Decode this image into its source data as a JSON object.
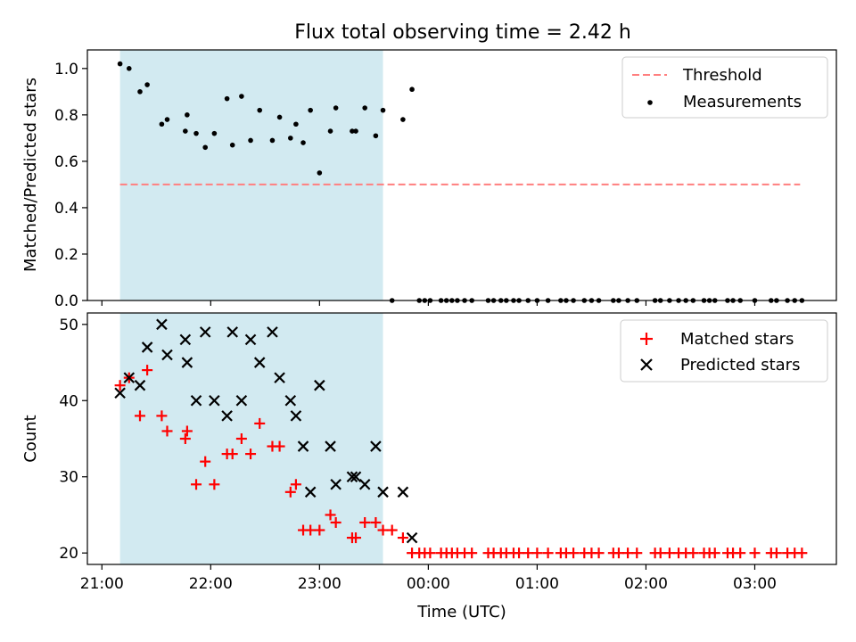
{
  "title": "Flux total observing time = 2.42 h",
  "colors": {
    "shade": "#add8e6",
    "threshold": "#ff7f7f",
    "matched": "#ff0000",
    "predicted": "#000000",
    "measurement": "#000000"
  },
  "shaded_interval": {
    "start": "21:10",
    "end": "23:35"
  },
  "x_axis": {
    "label": "Time (UTC)",
    "range": [
      "20:52",
      "03:45"
    ],
    "ticks": [
      {
        "t": "21:00",
        "label": "21:00"
      },
      {
        "t": "22:00",
        "label": "22:00"
      },
      {
        "t": "23:00",
        "label": "23:00"
      },
      {
        "t": "00:00",
        "label": "00:00"
      },
      {
        "t": "01:00",
        "label": "01:00"
      },
      {
        "t": "02:00",
        "label": "02:00"
      },
      {
        "t": "03:00",
        "label": "03:00"
      }
    ]
  },
  "chart_data": [
    {
      "type": "scatter",
      "ylabel": "Matched/Predicted stars",
      "ylim": [
        0,
        1.08
      ],
      "yticks": [
        0.0,
        0.2,
        0.4,
        0.6,
        0.8,
        1.0
      ],
      "ytick_labels": [
        "0.0",
        "0.2",
        "0.4",
        "0.6",
        "0.8",
        "1.0"
      ],
      "legend": {
        "position": "upper right",
        "entries": [
          "Threshold",
          "Measurements"
        ]
      },
      "threshold": {
        "name": "Threshold",
        "value": 0.5,
        "x_start": "21:10",
        "x_end": "03:25"
      },
      "series": [
        {
          "name": "Measurements",
          "points": [
            [
              "21:10",
              1.02
            ],
            [
              "21:15",
              1.0
            ],
            [
              "21:21",
              0.9
            ],
            [
              "21:25",
              0.93
            ],
            [
              "21:33",
              0.76
            ],
            [
              "21:36",
              0.78
            ],
            [
              "21:46",
              0.73
            ],
            [
              "21:47",
              0.8
            ],
            [
              "21:52",
              0.72
            ],
            [
              "21:57",
              0.66
            ],
            [
              "22:02",
              0.72
            ],
            [
              "22:09",
              0.87
            ],
            [
              "22:12",
              0.67
            ],
            [
              "22:17",
              0.88
            ],
            [
              "22:22",
              0.69
            ],
            [
              "22:27",
              0.82
            ],
            [
              "22:34",
              0.69
            ],
            [
              "22:38",
              0.79
            ],
            [
              "22:44",
              0.7
            ],
            [
              "22:47",
              0.76
            ],
            [
              "22:51",
              0.68
            ],
            [
              "22:55",
              0.82
            ],
            [
              "23:00",
              0.55
            ],
            [
              "23:06",
              0.73
            ],
            [
              "23:09",
              0.83
            ],
            [
              "23:18",
              0.73
            ],
            [
              "23:20",
              0.73
            ],
            [
              "23:25",
              0.83
            ],
            [
              "23:31",
              0.71
            ],
            [
              "23:35",
              0.82
            ],
            [
              "23:46",
              0.78
            ],
            [
              "23:51",
              0.91
            ],
            [
              "23:40",
              0.0
            ],
            [
              "23:55",
              0.0
            ],
            [
              "23:58",
              0.0
            ],
            [
              "00:01",
              0.0
            ],
            [
              "00:07",
              0.0
            ],
            [
              "00:10",
              0.0
            ],
            [
              "00:13",
              0.0
            ],
            [
              "00:16",
              0.0
            ],
            [
              "00:20",
              0.0
            ],
            [
              "00:24",
              0.0
            ],
            [
              "00:33",
              0.0
            ],
            [
              "00:36",
              0.0
            ],
            [
              "00:40",
              0.0
            ],
            [
              "00:43",
              0.0
            ],
            [
              "00:47",
              0.0
            ],
            [
              "00:50",
              0.0
            ],
            [
              "00:55",
              0.0
            ],
            [
              "01:00",
              0.0
            ],
            [
              "01:06",
              0.0
            ],
            [
              "01:13",
              0.0
            ],
            [
              "01:16",
              0.0
            ],
            [
              "01:20",
              0.0
            ],
            [
              "01:26",
              0.0
            ],
            [
              "01:30",
              0.0
            ],
            [
              "01:34",
              0.0
            ],
            [
              "01:42",
              0.0
            ],
            [
              "01:45",
              0.0
            ],
            [
              "01:50",
              0.0
            ],
            [
              "01:55",
              0.0
            ],
            [
              "02:05",
              0.0
            ],
            [
              "02:08",
              0.0
            ],
            [
              "02:13",
              0.0
            ],
            [
              "02:18",
              0.0
            ],
            [
              "02:22",
              0.0
            ],
            [
              "02:26",
              0.0
            ],
            [
              "02:32",
              0.0
            ],
            [
              "02:35",
              0.0
            ],
            [
              "02:38",
              0.0
            ],
            [
              "02:45",
              0.0
            ],
            [
              "02:48",
              0.0
            ],
            [
              "02:52",
              0.0
            ],
            [
              "03:00",
              0.0
            ],
            [
              "03:09",
              0.0
            ],
            [
              "03:12",
              0.0
            ],
            [
              "03:18",
              0.0
            ],
            [
              "03:22",
              0.0
            ],
            [
              "03:26",
              0.0
            ]
          ]
        }
      ]
    },
    {
      "type": "scatter",
      "ylabel": "Count",
      "ylim": [
        18.5,
        51.5
      ],
      "yticks": [
        20,
        30,
        40,
        50
      ],
      "ytick_labels": [
        "20",
        "30",
        "40",
        "50"
      ],
      "legend": {
        "position": "upper right",
        "entries": [
          "Matched stars",
          "Predicted stars"
        ]
      },
      "series": [
        {
          "name": "Matched stars",
          "marker": "plus",
          "points": [
            [
              "21:10",
              42
            ],
            [
              "21:15",
              43
            ],
            [
              "21:21",
              38
            ],
            [
              "21:25",
              44
            ],
            [
              "21:33",
              38
            ],
            [
              "21:36",
              36
            ],
            [
              "21:46",
              35
            ],
            [
              "21:47",
              36
            ],
            [
              "21:52",
              29
            ],
            [
              "21:57",
              32
            ],
            [
              "22:02",
              29
            ],
            [
              "22:09",
              33
            ],
            [
              "22:12",
              33
            ],
            [
              "22:17",
              35
            ],
            [
              "22:22",
              33
            ],
            [
              "22:27",
              37
            ],
            [
              "22:34",
              34
            ],
            [
              "22:38",
              34
            ],
            [
              "22:44",
              28
            ],
            [
              "22:47",
              29
            ],
            [
              "22:51",
              23
            ],
            [
              "22:55",
              23
            ],
            [
              "23:00",
              23
            ],
            [
              "23:06",
              25
            ],
            [
              "23:09",
              24
            ],
            [
              "23:18",
              22
            ],
            [
              "23:20",
              22
            ],
            [
              "23:25",
              24
            ],
            [
              "23:31",
              24
            ],
            [
              "23:35",
              23
            ],
            [
              "23:40",
              23
            ],
            [
              "23:46",
              22
            ],
            [
              "23:51",
              20
            ],
            [
              "23:55",
              20
            ],
            [
              "23:58",
              20
            ],
            [
              "00:01",
              20
            ],
            [
              "00:07",
              20
            ],
            [
              "00:10",
              20
            ],
            [
              "00:13",
              20
            ],
            [
              "00:16",
              20
            ],
            [
              "00:20",
              20
            ],
            [
              "00:24",
              20
            ],
            [
              "00:33",
              20
            ],
            [
              "00:36",
              20
            ],
            [
              "00:40",
              20
            ],
            [
              "00:43",
              20
            ],
            [
              "00:47",
              20
            ],
            [
              "00:50",
              20
            ],
            [
              "00:55",
              20
            ],
            [
              "01:00",
              20
            ],
            [
              "01:06",
              20
            ],
            [
              "01:13",
              20
            ],
            [
              "01:16",
              20
            ],
            [
              "01:20",
              20
            ],
            [
              "01:26",
              20
            ],
            [
              "01:30",
              20
            ],
            [
              "01:34",
              20
            ],
            [
              "01:42",
              20
            ],
            [
              "01:45",
              20
            ],
            [
              "01:50",
              20
            ],
            [
              "01:55",
              20
            ],
            [
              "02:05",
              20
            ],
            [
              "02:08",
              20
            ],
            [
              "02:13",
              20
            ],
            [
              "02:18",
              20
            ],
            [
              "02:22",
              20
            ],
            [
              "02:26",
              20
            ],
            [
              "02:32",
              20
            ],
            [
              "02:35",
              20
            ],
            [
              "02:38",
              20
            ],
            [
              "02:45",
              20
            ],
            [
              "02:48",
              20
            ],
            [
              "02:52",
              20
            ],
            [
              "03:00",
              20
            ],
            [
              "03:09",
              20
            ],
            [
              "03:12",
              20
            ],
            [
              "03:18",
              20
            ],
            [
              "03:22",
              20
            ],
            [
              "03:26",
              20
            ]
          ]
        },
        {
          "name": "Predicted stars",
          "marker": "x",
          "points": [
            [
              "21:10",
              41
            ],
            [
              "21:15",
              43
            ],
            [
              "21:21",
              42
            ],
            [
              "21:25",
              47
            ],
            [
              "21:33",
              50
            ],
            [
              "21:36",
              46
            ],
            [
              "21:46",
              48
            ],
            [
              "21:47",
              45
            ],
            [
              "21:52",
              40
            ],
            [
              "21:57",
              49
            ],
            [
              "22:02",
              40
            ],
            [
              "22:09",
              38
            ],
            [
              "22:12",
              49
            ],
            [
              "22:17",
              40
            ],
            [
              "22:22",
              48
            ],
            [
              "22:27",
              45
            ],
            [
              "22:34",
              49
            ],
            [
              "22:38",
              43
            ],
            [
              "22:44",
              40
            ],
            [
              "22:47",
              38
            ],
            [
              "22:51",
              34
            ],
            [
              "22:55",
              28
            ],
            [
              "23:00",
              42
            ],
            [
              "23:06",
              34
            ],
            [
              "23:09",
              29
            ],
            [
              "23:18",
              30
            ],
            [
              "23:20",
              30
            ],
            [
              "23:25",
              29
            ],
            [
              "23:31",
              34
            ],
            [
              "23:35",
              28
            ],
            [
              "23:46",
              28
            ],
            [
              "23:51",
              22
            ]
          ]
        }
      ]
    }
  ]
}
